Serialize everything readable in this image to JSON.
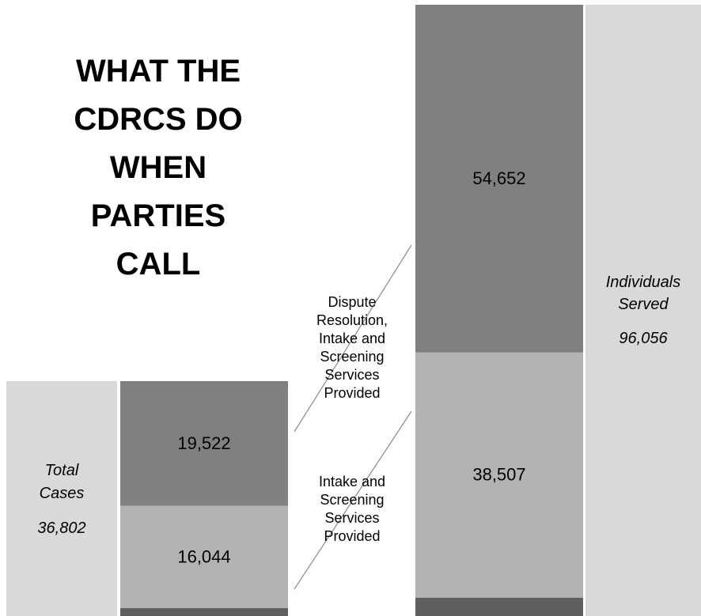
{
  "headline": {
    "lines": [
      "WHAT THE",
      "CDRCS DO",
      "WHEN",
      "PARTIES",
      "CALL"
    ]
  },
  "callouts": {
    "dispute": [
      "Dispute",
      "Resolution,",
      "Intake and",
      "Screening",
      "Services",
      "Provided"
    ],
    "intake": [
      "Intake and",
      "Screening",
      "Services",
      "Provided"
    ]
  },
  "colors": {
    "total_bg": "#d9d9d9",
    "dispute": "#808080",
    "intake": "#b3b3b3",
    "base": "#5f5f5f",
    "connector": "#8a8a8a"
  },
  "chart_data": {
    "type": "bar",
    "stacked": true,
    "categories": [
      "Cases",
      "Individuals"
    ],
    "totals": [
      {
        "label_line1": "Total",
        "label_line2": "Cases",
        "value_text": "36,802",
        "value": 36802
      },
      {
        "label_line1": "Individuals",
        "label_line2": "Served",
        "value_text": "96,056",
        "value": 96056
      }
    ],
    "series": [
      {
        "name": "Intake and Screening Services Provided",
        "values": [
          16044,
          38507
        ],
        "labels": [
          "16,044",
          "38,507"
        ]
      },
      {
        "name": "Dispute Resolution, Intake and Screening Services Provided",
        "values": [
          19522,
          54652
        ],
        "labels": [
          "19,522",
          "54,652"
        ]
      }
    ],
    "remainder": [
      1236,
      2897
    ]
  }
}
